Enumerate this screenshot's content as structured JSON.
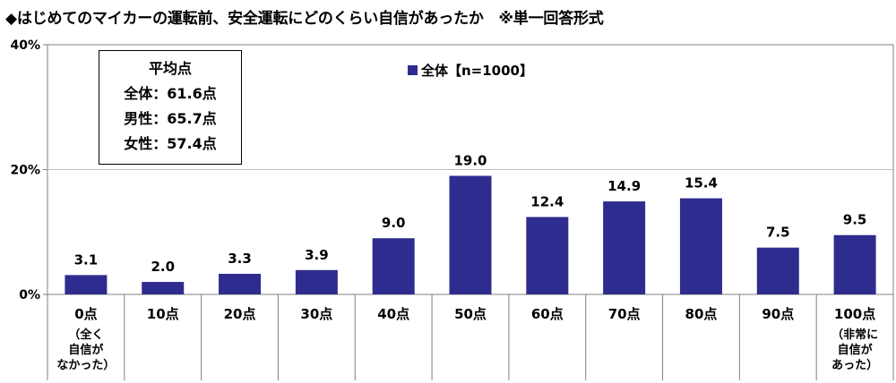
{
  "title": "◆はじめてのマイカーの運転前、安全運転にどのくらい自信があったか　※単一回答形式",
  "average_box": {
    "heading": "平均点",
    "rows": [
      "全体：61.6点",
      "男性：65.7点",
      "女性：57.4点"
    ]
  },
  "legend": {
    "label": "全体【n=1000】"
  },
  "colors": {
    "bar": "#2E2C8E",
    "grid": "#bfbfbf",
    "axis": "#808080"
  },
  "chart_data": {
    "type": "bar",
    "categories": [
      "0点",
      "10点",
      "20点",
      "30点",
      "40点",
      "50点",
      "60点",
      "70点",
      "80点",
      "90点",
      "100点"
    ],
    "category_notes": [
      [
        "（全く",
        "自信が",
        "なかった）"
      ],
      [],
      [],
      [],
      [],
      [],
      [],
      [],
      [],
      [],
      [
        "（非常に",
        "自信が",
        "あった）"
      ]
    ],
    "series": [
      {
        "name": "全体【n=1000】",
        "values": [
          3.1,
          2.0,
          3.3,
          3.9,
          9.0,
          19.0,
          12.4,
          14.9,
          15.4,
          7.5,
          9.5
        ]
      }
    ],
    "value_labels": [
      "3.1",
      "2.0",
      "3.3",
      "3.9",
      "9.0",
      "19.0",
      "12.4",
      "14.9",
      "15.4",
      "7.5",
      "9.5"
    ],
    "ylim": [
      0,
      40
    ],
    "yticks": [
      0,
      20,
      40
    ],
    "ytick_labels": [
      "0%",
      "20%",
      "40%"
    ],
    "grid": true,
    "legend_position": "top-center"
  }
}
